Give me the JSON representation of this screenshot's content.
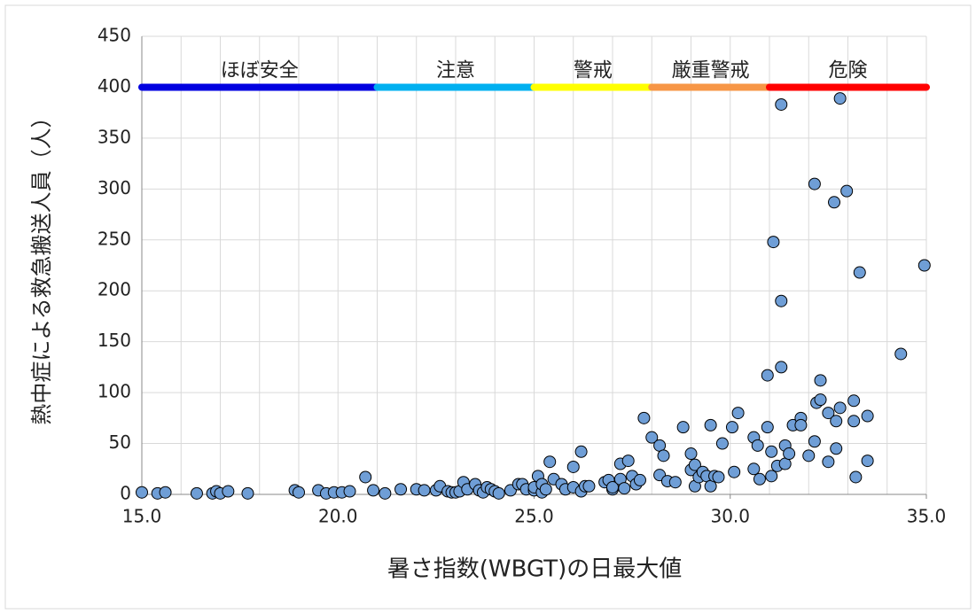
{
  "chart_data": {
    "type": "scatter",
    "xlabel": "暑さ指数(WBGT)の日最大値",
    "ylabel": "熱中症による救急搬送人員（人）",
    "color": "#6f9ed6",
    "xlim": [
      15,
      35
    ],
    "ylim": [
      0,
      450
    ],
    "xticks": [
      {
        "value": 15,
        "label": "15.0"
      },
      {
        "value": 20,
        "label": "20.0"
      },
      {
        "value": 25,
        "label": "25.0"
      },
      {
        "value": 30,
        "label": "30.0"
      },
      {
        "value": 35,
        "label": "35.0"
      }
    ],
    "yticks": [
      0,
      50,
      100,
      150,
      200,
      250,
      300,
      350,
      400,
      450
    ],
    "xgrid": [
      15,
      16,
      17,
      18,
      19,
      20,
      21,
      22,
      23,
      24,
      25,
      26,
      27,
      28,
      29,
      30,
      31,
      32,
      33,
      34,
      35
    ],
    "grid": true,
    "zone_level": 400,
    "zones": [
      {
        "label": "ほぼ安全",
        "start": 15,
        "end": 21,
        "color": "#0000e0"
      },
      {
        "label": "注意",
        "start": 21,
        "end": 25,
        "color": "#00b0f0"
      },
      {
        "label": "警戒",
        "start": 25,
        "end": 28,
        "color": "#ffff00"
      },
      {
        "label": "厳重警戒",
        "start": 28,
        "end": 31,
        "color": "#f79646"
      },
      {
        "label": "危険",
        "start": 31,
        "end": 35,
        "color": "#ff0000"
      }
    ],
    "x": [
      15.0,
      15.4,
      15.6,
      16.4,
      16.8,
      16.9,
      17.0,
      17.2,
      17.7,
      18.9,
      19.0,
      19.5,
      19.7,
      19.9,
      20.1,
      20.3,
      20.7,
      20.9,
      21.2,
      21.6,
      22.0,
      22.2,
      22.5,
      22.6,
      22.8,
      22.9,
      23.0,
      23.1,
      23.2,
      23.3,
      23.5,
      23.6,
      23.7,
      23.8,
      23.9,
      24.0,
      24.1,
      24.4,
      24.6,
      24.7,
      24.8,
      25.0,
      25.0,
      25.1,
      25.2,
      25.2,
      25.3,
      25.4,
      25.5,
      25.7,
      25.8,
      26.0,
      26.0,
      26.2,
      26.2,
      26.3,
      26.4,
      26.8,
      26.9,
      27.0,
      27.0,
      27.2,
      27.2,
      27.3,
      27.4,
      27.5,
      27.6,
      27.7,
      27.8,
      28.0,
      28.2,
      28.2,
      28.3,
      28.4,
      28.6,
      28.8,
      29.0,
      29.0,
      29.1,
      29.1,
      29.2,
      29.3,
      29.4,
      29.5,
      29.5,
      29.6,
      29.7,
      29.8,
      30.05,
      30.1,
      30.2,
      30.6,
      30.6,
      30.7,
      30.75,
      30.95,
      30.95,
      31.05,
      31.05,
      31.1,
      31.2,
      31.3,
      31.3,
      31.4,
      31.4,
      31.5,
      31.6,
      31.8,
      31.8,
      31.3,
      32.0,
      32.15,
      32.15,
      32.2,
      32.3,
      32.3,
      32.5,
      32.5,
      32.65,
      32.7,
      32.7,
      32.8,
      32.8,
      32.97,
      33.15,
      33.15,
      33.2,
      33.3,
      33.5,
      33.5,
      34.35,
      34.95
    ],
    "values": [
      2,
      1,
      2,
      1,
      1,
      3,
      1,
      3,
      1,
      4,
      2,
      4,
      1,
      2,
      2,
      3,
      17,
      4,
      1,
      5,
      5,
      4,
      4,
      8,
      3,
      2,
      2,
      3,
      12,
      5,
      10,
      4,
      2,
      7,
      5,
      3,
      1,
      4,
      10,
      10,
      5,
      4,
      7,
      18,
      2,
      10,
      5,
      32,
      15,
      10,
      5,
      7,
      27,
      42,
      3,
      8,
      8,
      12,
      14,
      5,
      7,
      15,
      30,
      6,
      33,
      18,
      10,
      14,
      75,
      56,
      19,
      48,
      38,
      13,
      12,
      66,
      24,
      40,
      8,
      29,
      17,
      22,
      18,
      8,
      68,
      18,
      17,
      50,
      66,
      22,
      80,
      56,
      25,
      48,
      15,
      117,
      66,
      18,
      42,
      248,
      28,
      190,
      125,
      30,
      48,
      40,
      68,
      75,
      68,
      383,
      38,
      305,
      52,
      90,
      93,
      112,
      32,
      80,
      287,
      45,
      72,
      85,
      389,
      298,
      72,
      92,
      17,
      218,
      77,
      33,
      138,
      225
    ]
  }
}
